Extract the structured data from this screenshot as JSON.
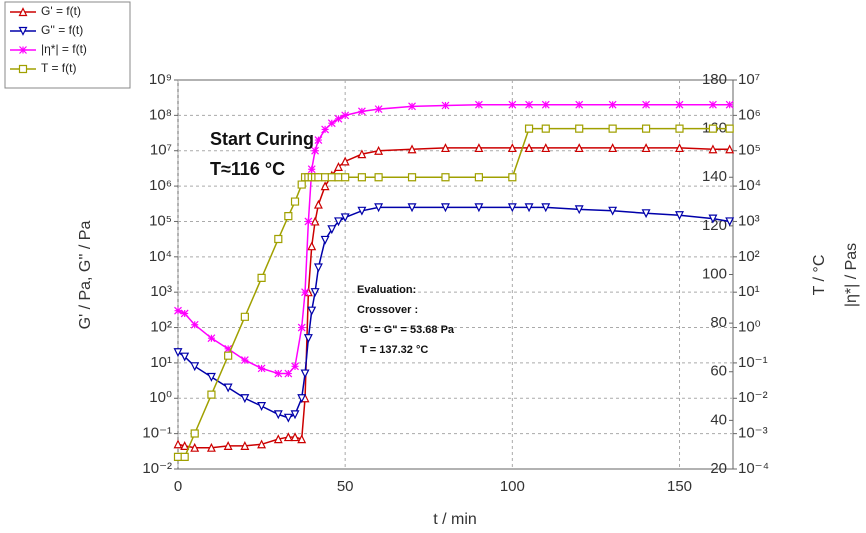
{
  "chart_data": {
    "type": "line",
    "xlabel": "t / min",
    "ylabel": "G' / Pa, G'' / Pa",
    "y2label": "T / °C",
    "y3label": "|η*| / Pas",
    "xlim": [
      0,
      166
    ],
    "xticks": [
      0,
      50,
      100,
      150
    ],
    "ylim": [
      0.01,
      1000000000
    ],
    "log_y": true,
    "yticks": [
      {
        "value": 0.01,
        "label": "10⁻²"
      },
      {
        "value": 0.1,
        "label": "10⁻¹"
      },
      {
        "value": 1,
        "label": "10⁰"
      },
      {
        "value": 10,
        "label": "10¹"
      },
      {
        "value": 100,
        "label": "10²"
      },
      {
        "value": 1000,
        "label": "10³"
      },
      {
        "value": 10000,
        "label": "10⁴"
      },
      {
        "value": 100000,
        "label": "10⁵"
      },
      {
        "value": 1000000,
        "label": "10⁶"
      },
      {
        "value": 10000000,
        "label": "10⁷"
      },
      {
        "value": 100000000,
        "label": "10⁸"
      },
      {
        "value": 1000000000,
        "label": "10⁹"
      }
    ],
    "y2lim": [
      20,
      180
    ],
    "y2ticks": [
      20,
      40,
      60,
      80,
      100,
      120,
      140,
      160,
      180
    ],
    "y3lim": [
      0.0001,
      10000000
    ],
    "log_y3": true,
    "y3ticks": [
      {
        "value": 0.0001,
        "label": "10⁻⁴"
      },
      {
        "value": 0.001,
        "label": "10⁻³"
      },
      {
        "value": 0.01,
        "label": "10⁻²"
      },
      {
        "value": 0.1,
        "label": "10⁻¹"
      },
      {
        "value": 1,
        "label": "10⁰"
      },
      {
        "value": 10,
        "label": "10¹"
      },
      {
        "value": 100,
        "label": "10²"
      },
      {
        "value": 1000,
        "label": "10³"
      },
      {
        "value": 10000,
        "label": "10⁴"
      },
      {
        "value": 100000,
        "label": "10⁵"
      },
      {
        "value": 1000000,
        "label": "10⁶"
      },
      {
        "value": 10000000,
        "label": "10⁷"
      }
    ],
    "grid": true,
    "legend": "top-left",
    "x": [
      0,
      2,
      5,
      10,
      15,
      20,
      25,
      30,
      33,
      35,
      37,
      38,
      39,
      40,
      41,
      42,
      44,
      46,
      48,
      50,
      55,
      60,
      70,
      80,
      90,
      100,
      105,
      110,
      120,
      130,
      140,
      150,
      160,
      165
    ],
    "series": [
      {
        "name": "G' = f(t)",
        "color": "#cc0000",
        "marker": "triangle-up",
        "axis": "y",
        "values": [
          0.05,
          0.045,
          0.04,
          0.04,
          0.045,
          0.045,
          0.05,
          0.07,
          0.08,
          0.08,
          0.07,
          1,
          1000,
          20000,
          100000,
          300000,
          1000000,
          2000000,
          3500000,
          5000000,
          8000000,
          10000000,
          11000000,
          12000000,
          12000000,
          12000000,
          12000000,
          12000000,
          12000000,
          12000000,
          12000000,
          12000000,
          11000000,
          11000000
        ]
      },
      {
        "name": "G'' = f(t)",
        "color": "#0000aa",
        "marker": "triangle-down",
        "axis": "y",
        "values": [
          20,
          15,
          8,
          4,
          2,
          1,
          0.6,
          0.35,
          0.28,
          0.35,
          1,
          5,
          50,
          300,
          1000,
          5000,
          30000,
          60000,
          100000,
          130000,
          200000,
          250000,
          250000,
          250000,
          250000,
          250000,
          250000,
          250000,
          220000,
          200000,
          170000,
          150000,
          120000,
          100000
        ]
      },
      {
        "name": "|η*| = f(t)",
        "color": "#ff00ff",
        "marker": "star",
        "axis": "y3",
        "values": [
          3,
          2.5,
          1.2,
          0.5,
          0.25,
          0.12,
          0.07,
          0.05,
          0.05,
          0.08,
          1,
          10,
          1000,
          30000,
          100000,
          200000,
          400000,
          600000,
          800000,
          1000000,
          1300000,
          1500000,
          1800000,
          1900000,
          2000000,
          2000000,
          2000000,
          2000000,
          2000000,
          2000000,
          2000000,
          2000000,
          2000000,
          2000000
        ]
      },
      {
        "name": "T = f(t)",
        "color": "#a0a000",
        "marker": "square",
        "axis": "y2",
        "values": [
          25,
          25,
          34.6,
          50.6,
          66.6,
          82.6,
          98.6,
          114.6,
          124,
          130,
          137,
          140,
          140,
          140,
          140,
          140,
          140,
          140,
          140,
          140,
          140,
          140,
          140,
          140,
          140,
          140,
          160,
          160,
          160,
          160,
          160,
          160,
          160,
          160
        ]
      }
    ],
    "annotations": [
      {
        "text": "Start Curing"
      },
      {
        "text": "T≈116 °C"
      },
      {
        "text": "Evaluation:"
      },
      {
        "text": "Crossover :"
      },
      {
        "text": "G' = G\" = 53.68 Pa"
      },
      {
        "text": "T = 137.32 °C"
      }
    ]
  }
}
